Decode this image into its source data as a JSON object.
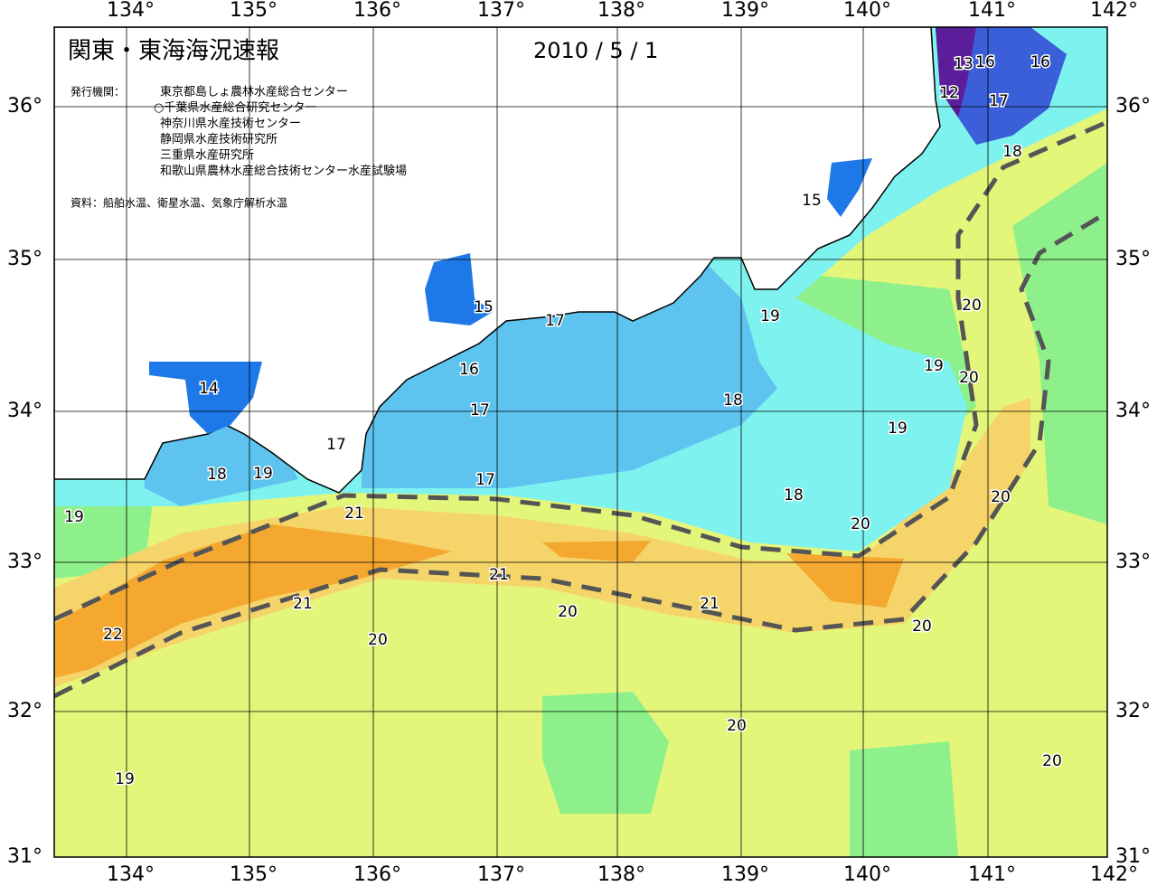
{
  "header": {
    "title": "関東・東海海況速報",
    "date": "2010 / 5 / 1",
    "publisher_label": "発行機関：",
    "publishers": [
      "東京都島しょ農林水産総合センター",
      "○千葉県水産総合研究センター",
      "神奈川県水産技術センター",
      "静岡県水産技術研究所",
      "三重県水産研究所",
      "和歌山県農林水産総合技術センター水産試験場"
    ],
    "source": "資料：船舶水温、衛星水温、気象庁解析水温"
  },
  "map": {
    "longitude_labels": [
      "134°",
      "135°",
      "136°",
      "137°",
      "138°",
      "139°",
      "140°",
      "141°",
      "142°"
    ],
    "latitude_labels": [
      "31°",
      "32°",
      "33°",
      "34°",
      "35°",
      "36°"
    ],
    "contour_labels": [
      "21",
      "21",
      "21",
      "21",
      "22",
      "20",
      "20",
      "20",
      "20",
      "20",
      "20",
      "20",
      "20",
      "20",
      "19",
      "19",
      "19",
      "19",
      "19",
      "19",
      "18",
      "18",
      "18",
      "18",
      "17",
      "17",
      "17",
      "17",
      "17",
      "16",
      "16",
      "15",
      "15",
      "14",
      "13",
      "16",
      "12"
    ]
  }
}
